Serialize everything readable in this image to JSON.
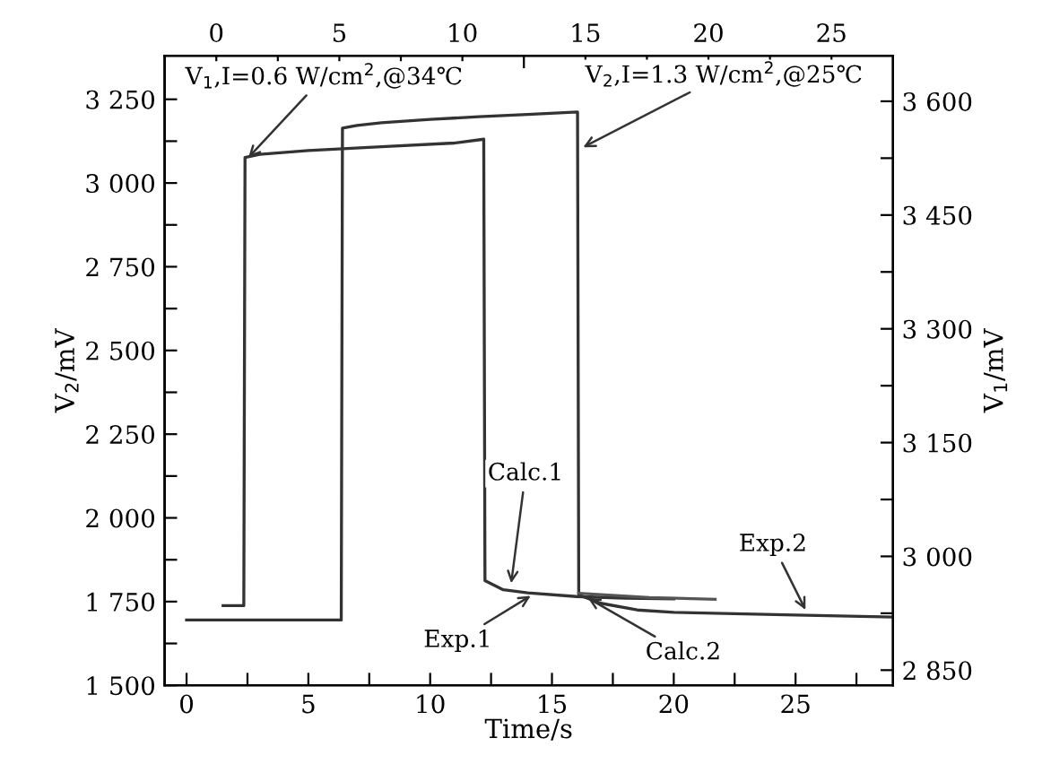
{
  "chart_data": {
    "type": "line",
    "xlabel": "Time/s",
    "ylabel": "V$_{2}$/mV",
    "y2label": "V$_{1}$/mV",
    "xlim": [
      -0.9,
      29
    ],
    "xticks": [
      0,
      {
        "value": 2.5,
        "label": null
      },
      5,
      {
        "value": 7.5,
        "label": null
      },
      10,
      {
        "value": 12.5,
        "label": null
      },
      15,
      {
        "value": 17.5,
        "label": null
      },
      20,
      {
        "value": 22.5,
        "label": null
      },
      25,
      {
        "value": 27.5,
        "label": null
      }
    ],
    "x2lim": [
      -2.1,
      27.5
    ],
    "x2ticks": [
      0,
      {
        "value": 2.5,
        "label": null
      },
      5,
      {
        "value": 7.5,
        "label": null
      },
      10,
      {
        "value": 12.5,
        "label": null
      },
      15,
      {
        "value": 17.5,
        "label": null
      },
      20,
      {
        "value": 22.5,
        "label": null
      },
      25
    ],
    "ylim": [
      1500,
      3380
    ],
    "yticks": [
      {
        "value": 1500,
        "label": "1 500"
      },
      {
        "value": 1625,
        "label": null
      },
      {
        "value": 1750,
        "label": "1 750"
      },
      {
        "value": 1875,
        "label": null
      },
      {
        "value": 2000,
        "label": "2 000"
      },
      {
        "value": 2125,
        "label": null
      },
      {
        "value": 2250,
        "label": "2 250"
      },
      {
        "value": 2375,
        "label": null
      },
      {
        "value": 2500,
        "label": "2 500"
      },
      {
        "value": 2625,
        "label": null
      },
      {
        "value": 2750,
        "label": "2 750"
      },
      {
        "value": 2875,
        "label": null
      },
      {
        "value": 3000,
        "label": "3 000"
      },
      {
        "value": 3125,
        "label": null
      },
      {
        "value": 3250,
        "label": "3 250"
      }
    ],
    "y2lim": [
      2830,
      3660
    ],
    "y2ticks": [
      {
        "value": 2850,
        "label": "2 850"
      },
      {
        "value": 2925,
        "label": null
      },
      {
        "value": 3000,
        "label": "3 000"
      },
      {
        "value": 3075,
        "label": null
      },
      {
        "value": 3150,
        "label": "3 150"
      },
      {
        "value": 3225,
        "label": null
      },
      {
        "value": 3300,
        "label": "3 300"
      },
      {
        "value": 3375,
        "label": null
      },
      {
        "value": 3450,
        "label": "3 450"
      },
      {
        "value": 3525,
        "label": null
      },
      {
        "value": 3600,
        "label": "3 600"
      }
    ],
    "grid": false,
    "legend": false,
    "marker": "none",
    "line_style": "solid",
    "series": [
      {
        "color": "#333333",
        "axis": "y2",
        "x": [
          1.5,
          2.35,
          2.4,
          3,
          5,
          8,
          11,
          12.2,
          12.25,
          13,
          14,
          16,
          18,
          20
        ],
        "values": [
          2935,
          2935,
          3526,
          3530,
          3535,
          3540,
          3545,
          3550,
          2968,
          2956,
          2952,
          2947,
          2945,
          2944
        ]
      },
      {
        "color": "#333333",
        "x": [
          0,
          6.35,
          6.4,
          7,
          8,
          10,
          12,
          14,
          16.05,
          16.1,
          17,
          18.5,
          20,
          25,
          29
        ],
        "values": [
          1695,
          1695,
          3164,
          3172,
          3180,
          3190,
          3198,
          3205,
          3212,
          1770,
          1745,
          1725,
          1718,
          1710,
          1704
        ]
      },
      {
        "color": "#555555",
        "x": [
          16.1,
          19,
          21.7
        ],
        "values": [
          1775,
          1762,
          1757
        ]
      }
    ],
    "annotations": [
      {
        "text": "V$_{1}$,I=0.6 W/cm$^{2}$,@34℃",
        "x": 2.4,
        "y": 3065
      },
      {
        "text": "V$_{2}$,I=1.3 W/cm$^{2}$,@25℃",
        "x": 16.1,
        "y": 3100
      },
      {
        "text": "Calc.1",
        "x": 13.3,
        "y": 1790
      },
      {
        "text": "Exp.1",
        "x": 14.3,
        "y": 1775
      },
      {
        "text": "Calc.2",
        "x": 16.3,
        "y": 1768
      },
      {
        "text": "Exp.2",
        "x": 25.5,
        "y": 1712
      }
    ]
  }
}
